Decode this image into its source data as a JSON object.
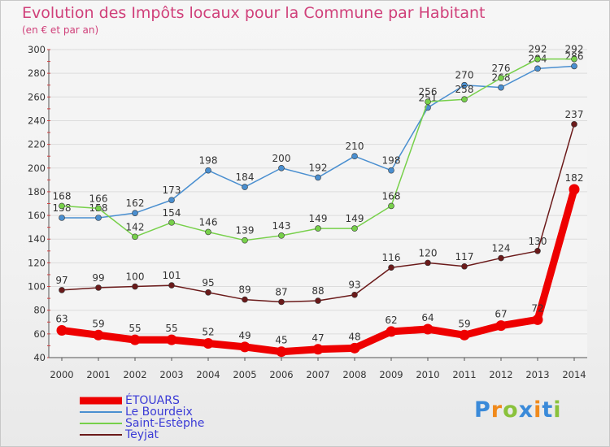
{
  "header": {
    "title": "Evolution des Impôts locaux pour la Commune par Habitant",
    "subtitle": "(en € et par an)"
  },
  "brand": {
    "letters": [
      "P",
      "r",
      "o",
      "x",
      "i",
      "t",
      "i"
    ],
    "colors": [
      "#3a8ad9",
      "#f08a1c",
      "#8ac23c",
      "#3a8ad9",
      "#f08a1c",
      "#3a8ad9",
      "#8ac23c"
    ]
  },
  "chart_data": {
    "type": "line",
    "title": "Evolution des Impôts locaux pour la Commune par Habitant",
    "subtitle": "(en € et par an)",
    "xlabel": "",
    "ylabel": "",
    "x": [
      2000,
      2001,
      2002,
      2003,
      2004,
      2005,
      2006,
      2007,
      2008,
      2009,
      2010,
      2011,
      2012,
      2013,
      2014
    ],
    "ylim": [
      40,
      300
    ],
    "yticks": [
      40,
      60,
      80,
      100,
      120,
      140,
      160,
      180,
      200,
      220,
      240,
      260,
      280,
      300
    ],
    "grid": true,
    "legend_position": "bottom-left",
    "series": [
      {
        "name": "ÉTOUARS",
        "color": "#ee0000",
        "values": [
          63,
          59,
          55,
          55,
          52,
          49,
          45,
          47,
          48,
          62,
          64,
          59,
          67,
          72,
          182
        ]
      },
      {
        "name": "Le Bourdeix",
        "color": "#4a8fd0",
        "values": [
          158,
          158,
          162,
          173,
          198,
          184,
          200,
          192,
          210,
          198,
          251,
          270,
          268,
          284,
          286
        ]
      },
      {
        "name": "Saint-Estèphe",
        "color": "#77d04a",
        "values": [
          168,
          166,
          142,
          154,
          146,
          139,
          143,
          149,
          149,
          168,
          256,
          258,
          276,
          292,
          292
        ]
      },
      {
        "name": "Teyjat",
        "color": "#6b1a1a",
        "values": [
          97,
          99,
          100,
          101,
          95,
          89,
          87,
          88,
          93,
          116,
          120,
          117,
          124,
          130,
          237
        ]
      }
    ]
  }
}
